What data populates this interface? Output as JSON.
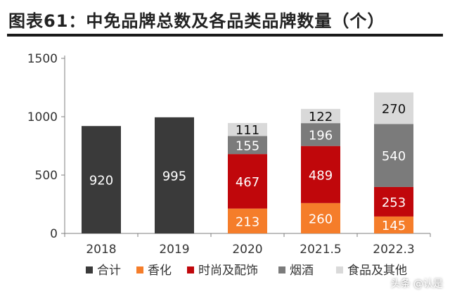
{
  "title": "图表61：中免品牌总数及各品类品牌数量（个）",
  "watermark": "头条 @认是",
  "chart_data": {
    "type": "bar",
    "stacked": true,
    "categories": [
      "2018",
      "2019",
      "2020",
      "2021.5",
      "2022.3"
    ],
    "ylim": [
      0,
      1500
    ],
    "yticks": [
      0,
      500,
      1000,
      1500
    ],
    "grid": false,
    "legend_position": "bottom",
    "series": [
      {
        "name": "合计",
        "color": "#3a3a3a",
        "values": [
          920,
          995,
          null,
          null,
          null
        ]
      },
      {
        "name": "香化",
        "color": "#f57d2a",
        "values": [
          null,
          null,
          213,
          260,
          145
        ]
      },
      {
        "name": "时尚及配饰",
        "color": "#c0070b",
        "values": [
          null,
          null,
          467,
          489,
          253
        ]
      },
      {
        "name": "烟酒",
        "color": "#7b7b7b",
        "values": [
          null,
          null,
          155,
          196,
          540
        ]
      },
      {
        "name": "食品及其他",
        "color": "#d9d9d9",
        "values": [
          null,
          null,
          111,
          122,
          270
        ]
      }
    ]
  }
}
